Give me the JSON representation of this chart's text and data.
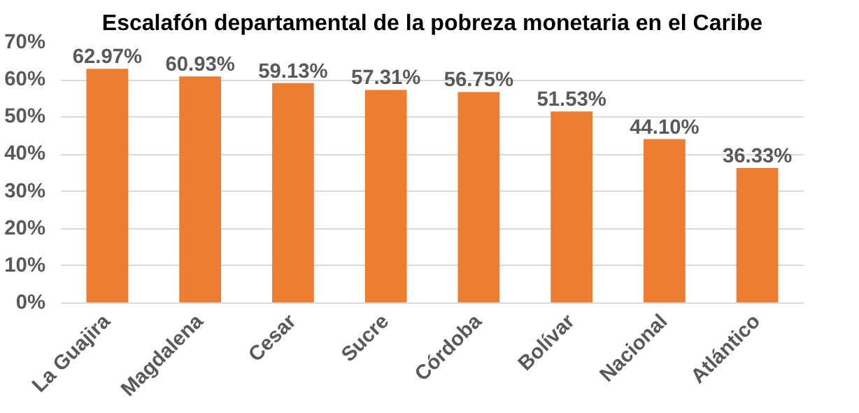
{
  "chart_data": {
    "type": "bar",
    "title": "Escalafón departamental de la pobreza monetaria en el Caribe",
    "categories": [
      "La Guajira",
      "Magdalena",
      "Cesar",
      "Sucre",
      "Córdoba",
      "Bolívar",
      "Nacional",
      "Atlántico"
    ],
    "values": [
      62.97,
      60.93,
      59.13,
      57.31,
      56.75,
      51.53,
      44.1,
      36.33
    ],
    "value_labels": [
      "62.97%",
      "60.93%",
      "59.13%",
      "57.31%",
      "56.75%",
      "51.53%",
      "44.10%",
      "36.33%"
    ],
    "color": "#ed7d31",
    "ylim": [
      0,
      70
    ],
    "yticks": [
      {
        "value": 0,
        "label": "0%"
      },
      {
        "value": 10,
        "label": "10%"
      },
      {
        "value": 20,
        "label": "20%"
      },
      {
        "value": 30,
        "label": "30%"
      },
      {
        "value": 40,
        "label": "40%"
      },
      {
        "value": 50,
        "label": "50%"
      },
      {
        "value": 60,
        "label": "60%"
      },
      {
        "value": 70,
        "label": "70%"
      }
    ],
    "grid": "y"
  }
}
